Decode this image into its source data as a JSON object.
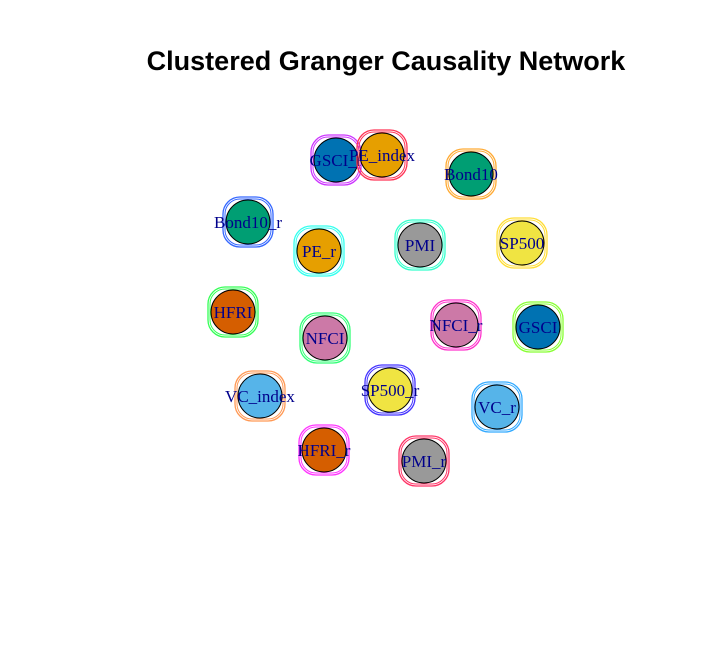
{
  "title": "Clustered Granger Causality Network",
  "nodes": [
    {
      "label": "GSCI_r",
      "fill": "#0072b2",
      "halo": "#cc33ff"
    },
    {
      "label": "PE_index",
      "fill": "#e69f00",
      "halo": "#ff3355"
    },
    {
      "label": "Bond10",
      "fill": "#009e73",
      "halo": "#ffaa33"
    },
    {
      "label": "Bond10_r",
      "fill": "#009e73",
      "halo": "#3366ff"
    },
    {
      "label": "PE_r",
      "fill": "#e69f00",
      "halo": "#33ffee"
    },
    {
      "label": "PMI",
      "fill": "#999999",
      "halo": "#33ffcc"
    },
    {
      "label": "SP500",
      "fill": "#f0e442",
      "halo": "#ffdd33"
    },
    {
      "label": "HFRI",
      "fill": "#d55e00",
      "halo": "#33ff55"
    },
    {
      "label": "NFCI",
      "fill": "#cc79a7",
      "halo": "#33ff77"
    },
    {
      "label": "NFCI_r",
      "fill": "#cc79a7",
      "halo": "#ff33cc"
    },
    {
      "label": "GSCI",
      "fill": "#0072b2",
      "halo": "#88ff33"
    },
    {
      "label": "VC_index",
      "fill": "#56b4e9",
      "halo": "#ff9955"
    },
    {
      "label": "SP500_r",
      "fill": "#f0e442",
      "halo": "#4433ff"
    },
    {
      "label": "VC_r",
      "fill": "#56b4e9",
      "halo": "#33aaff"
    },
    {
      "label": "HFRI_r",
      "fill": "#d55e00",
      "halo": "#ff33ff"
    },
    {
      "label": "PMI_r",
      "fill": "#999999",
      "halo": "#ff3366"
    }
  ]
}
